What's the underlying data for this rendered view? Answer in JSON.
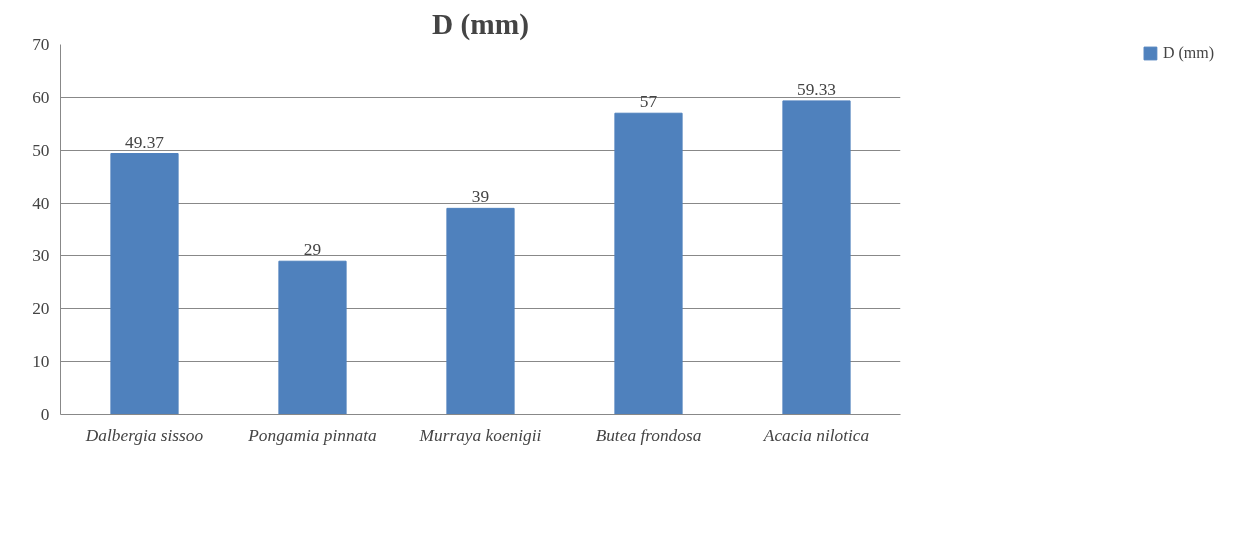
{
  "chart_data": {
    "type": "bar",
    "title": "D (mm)",
    "categories": [
      "Dalbergia sissoo",
      "Pongamia pinnata",
      "Murraya koenigii",
      "Butea frondosa",
      "Acacia nilotica"
    ],
    "series": [
      {
        "name": "D (mm)",
        "color": "#4f81bd",
        "values": [
          49.37,
          29,
          39,
          57,
          59.33
        ]
      }
    ],
    "ylim": [
      0,
      70
    ],
    "yticks": [
      0,
      10,
      20,
      30,
      40,
      50,
      60,
      70
    ],
    "grid": "y",
    "legend": "top right",
    "data_labels": true
  }
}
